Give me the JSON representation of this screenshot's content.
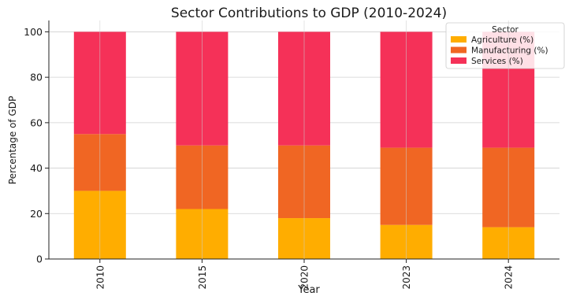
{
  "chart_data": {
    "type": "bar",
    "stacked": true,
    "title": "Sector Contributions to GDP (2010-2024)",
    "xlabel": "Year",
    "ylabel": "Percentage of GDP",
    "categories": [
      "2010",
      "2015",
      "2020",
      "2023",
      "2024"
    ],
    "ylim": [
      0,
      105
    ],
    "yticks": [
      0,
      20,
      40,
      60,
      80,
      100
    ],
    "grid": true,
    "legend": {
      "title": "Sector",
      "position": "top-right"
    },
    "series": [
      {
        "name": "Agriculture (%)",
        "color": "#ffad00",
        "values": [
          30,
          22,
          18,
          15,
          14
        ]
      },
      {
        "name": "Manufacturing (%)",
        "color": "#f06623",
        "values": [
          25,
          28,
          32,
          34,
          35
        ]
      },
      {
        "name": "Services (%)",
        "color": "#f53158",
        "values": [
          45,
          50,
          50,
          51,
          51
        ]
      }
    ]
  }
}
